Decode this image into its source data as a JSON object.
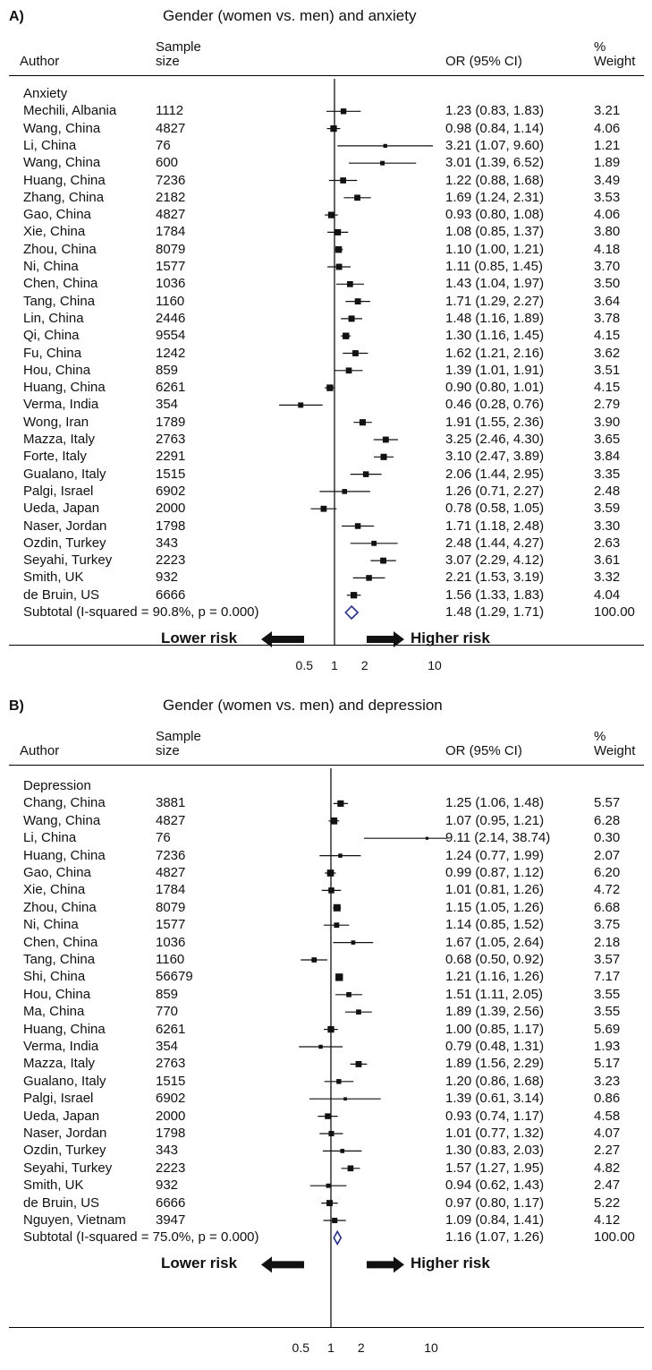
{
  "panels": [
    {
      "label": "A)",
      "title": "Gender (women vs. men) and anxiety",
      "headers": {
        "author": "Author",
        "sample_line1": "Sample",
        "sample_line2": "size",
        "or": "OR (95% CI)",
        "weight_line1": "%",
        "weight_line2": "Weight"
      },
      "group": "Anxiety",
      "subtotal_label": "Subtotal  (I-squared = 90.8%, p = 0.000)",
      "subtotal_text": "1.48 (1.29, 1.71)",
      "subtotal_weight": "100.00",
      "lower_risk": "Lower risk",
      "higher_risk": "Higher risk",
      "ticks": [
        "0.5",
        "1",
        "2",
        "10"
      ],
      "chart_data": {
        "type": "forest",
        "x_scale": "log",
        "reference_line": 1,
        "summary": {
          "or": 1.48,
          "lo": 1.29,
          "hi": 1.71
        },
        "studies": [
          {
            "author": "Mechili, Albania",
            "n": "1112",
            "or": 1.23,
            "lo": 0.83,
            "hi": 1.83,
            "text": "1.23 (0.83, 1.83)",
            "weight": "3.21"
          },
          {
            "author": "Wang, China",
            "n": "4827",
            "or": 0.98,
            "lo": 0.84,
            "hi": 1.14,
            "text": "0.98 (0.84, 1.14)",
            "weight": "4.06"
          },
          {
            "author": "Li, China",
            "n": "76",
            "or": 3.21,
            "lo": 1.07,
            "hi": 9.6,
            "text": "3.21 (1.07, 9.60)",
            "weight": "1.21"
          },
          {
            "author": "Wang, China",
            "n": "600",
            "or": 3.01,
            "lo": 1.39,
            "hi": 6.52,
            "text": "3.01 (1.39, 6.52)",
            "weight": "1.89"
          },
          {
            "author": "Huang, China",
            "n": "7236",
            "or": 1.22,
            "lo": 0.88,
            "hi": 1.68,
            "text": "1.22 (0.88, 1.68)",
            "weight": "3.49"
          },
          {
            "author": "Zhang, China",
            "n": "2182",
            "or": 1.69,
            "lo": 1.24,
            "hi": 2.31,
            "text": "1.69 (1.24, 2.31)",
            "weight": "3.53"
          },
          {
            "author": "Gao, China",
            "n": "4827",
            "or": 0.93,
            "lo": 0.8,
            "hi": 1.08,
            "text": "0.93 (0.80, 1.08)",
            "weight": "4.06"
          },
          {
            "author": "Xie, China",
            "n": "1784",
            "or": 1.08,
            "lo": 0.85,
            "hi": 1.37,
            "text": "1.08 (0.85, 1.37)",
            "weight": "3.80"
          },
          {
            "author": "Zhou, China",
            "n": "8079",
            "or": 1.1,
            "lo": 1.0,
            "hi": 1.21,
            "text": "1.10 (1.00, 1.21)",
            "weight": "4.18"
          },
          {
            "author": "Ni, China",
            "n": "1577",
            "or": 1.11,
            "lo": 0.85,
            "hi": 1.45,
            "text": "1.11 (0.85, 1.45)",
            "weight": "3.70"
          },
          {
            "author": "Chen, China",
            "n": "1036",
            "or": 1.43,
            "lo": 1.04,
            "hi": 1.97,
            "text": "1.43 (1.04, 1.97)",
            "weight": "3.50"
          },
          {
            "author": "Tang, China",
            "n": "1160",
            "or": 1.71,
            "lo": 1.29,
            "hi": 2.27,
            "text": "1.71 (1.29, 2.27)",
            "weight": "3.64"
          },
          {
            "author": "Lin, China",
            "n": "2446",
            "or": 1.48,
            "lo": 1.16,
            "hi": 1.89,
            "text": "1.48 (1.16, 1.89)",
            "weight": "3.78"
          },
          {
            "author": "Qi, China",
            "n": "9554",
            "or": 1.3,
            "lo": 1.16,
            "hi": 1.45,
            "text": "1.30 (1.16, 1.45)",
            "weight": "4.15"
          },
          {
            "author": "Fu, China",
            "n": "1242",
            "or": 1.62,
            "lo": 1.21,
            "hi": 2.16,
            "text": "1.62 (1.21, 2.16)",
            "weight": "3.62"
          },
          {
            "author": "Hou, China",
            "n": "859",
            "or": 1.39,
            "lo": 1.01,
            "hi": 1.91,
            "text": "1.39 (1.01, 1.91)",
            "weight": "3.51"
          },
          {
            "author": "Huang, China",
            "n": "6261",
            "or": 0.9,
            "lo": 0.8,
            "hi": 1.01,
            "text": "0.90 (0.80, 1.01)",
            "weight": "4.15"
          },
          {
            "author": "Verma, India",
            "n": "354",
            "or": 0.46,
            "lo": 0.28,
            "hi": 0.76,
            "text": "0.46 (0.28, 0.76)",
            "weight": "2.79"
          },
          {
            "author": "Wong, Iran",
            "n": "1789",
            "or": 1.91,
            "lo": 1.55,
            "hi": 2.36,
            "text": "1.91 (1.55, 2.36)",
            "weight": "3.90"
          },
          {
            "author": "Mazza, Italy",
            "n": "2763",
            "or": 3.25,
            "lo": 2.46,
            "hi": 4.3,
            "text": "3.25 (2.46, 4.30)",
            "weight": "3.65"
          },
          {
            "author": "Forte, Italy",
            "n": "2291",
            "or": 3.1,
            "lo": 2.47,
            "hi": 3.89,
            "text": "3.10 (2.47, 3.89)",
            "weight": "3.84"
          },
          {
            "author": "Gualano, Italy",
            "n": "1515",
            "or": 2.06,
            "lo": 1.44,
            "hi": 2.95,
            "text": "2.06 (1.44, 2.95)",
            "weight": "3.35"
          },
          {
            "author": "Palgi, Israel",
            "n": "6902",
            "or": 1.26,
            "lo": 0.71,
            "hi": 2.27,
            "text": "1.26 (0.71, 2.27)",
            "weight": "2.48"
          },
          {
            "author": "Ueda, Japan",
            "n": "2000",
            "or": 0.78,
            "lo": 0.58,
            "hi": 1.05,
            "text": "0.78 (0.58, 1.05)",
            "weight": "3.59"
          },
          {
            "author": "Naser, Jordan",
            "n": "1798",
            "or": 1.71,
            "lo": 1.18,
            "hi": 2.48,
            "text": "1.71 (1.18, 2.48)",
            "weight": "3.30"
          },
          {
            "author": "Ozdin, Turkey",
            "n": "343",
            "or": 2.48,
            "lo": 1.44,
            "hi": 4.27,
            "text": "2.48 (1.44, 4.27)",
            "weight": "2.63"
          },
          {
            "author": "Seyahi, Turkey",
            "n": "2223",
            "or": 3.07,
            "lo": 2.29,
            "hi": 4.12,
            "text": "3.07 (2.29, 4.12)",
            "weight": "3.61"
          },
          {
            "author": "Smith, UK",
            "n": "932",
            "or": 2.21,
            "lo": 1.53,
            "hi": 3.19,
            "text": "2.21 (1.53, 3.19)",
            "weight": "3.32"
          },
          {
            "author": "de Bruin, US",
            "n": "6666",
            "or": 1.56,
            "lo": 1.33,
            "hi": 1.83,
            "text": "1.56 (1.33, 1.83)",
            "weight": "4.04"
          }
        ]
      }
    },
    {
      "label": "B)",
      "title": "Gender (women vs. men) and depression",
      "headers": {
        "author": "Author",
        "sample_line1": "Sample",
        "sample_line2": "size",
        "or": "OR (95% CI)",
        "weight_line1": "%",
        "weight_line2": "Weight"
      },
      "group": "Depression",
      "subtotal_label": "Subtotal  (I-squared = 75.0%, p = 0.000)",
      "subtotal_text": "1.16 (1.07, 1.26)",
      "subtotal_weight": "100.00",
      "lower_risk": "Lower risk",
      "higher_risk": "Higher risk",
      "ticks": [
        "0.5",
        "1",
        "2",
        "10"
      ],
      "chart_data": {
        "type": "forest",
        "x_scale": "log",
        "reference_line": 1,
        "summary": {
          "or": 1.16,
          "lo": 1.07,
          "hi": 1.26
        },
        "studies": [
          {
            "author": "Chang, China",
            "n": "3881",
            "or": 1.25,
            "lo": 1.06,
            "hi": 1.48,
            "text": "1.25 (1.06, 1.48)",
            "weight": "5.57"
          },
          {
            "author": "Wang, China",
            "n": "4827",
            "or": 1.07,
            "lo": 0.95,
            "hi": 1.21,
            "text": "1.07 (0.95, 1.21)",
            "weight": "6.28"
          },
          {
            "author": "Li, China",
            "n": "76",
            "or": 9.11,
            "lo": 2.14,
            "hi": 38.74,
            "text": "9.11 (2.14, 38.74)",
            "weight": "0.30"
          },
          {
            "author": "Huang, China",
            "n": "7236",
            "or": 1.24,
            "lo": 0.77,
            "hi": 1.99,
            "text": "1.24 (0.77, 1.99)",
            "weight": "2.07"
          },
          {
            "author": "Gao, China",
            "n": "4827",
            "or": 0.99,
            "lo": 0.87,
            "hi": 1.12,
            "text": "0.99 (0.87, 1.12)",
            "weight": "6.20"
          },
          {
            "author": "Xie, China",
            "n": "1784",
            "or": 1.01,
            "lo": 0.81,
            "hi": 1.26,
            "text": "1.01 (0.81, 1.26)",
            "weight": "4.72"
          },
          {
            "author": "Zhou, China",
            "n": "8079",
            "or": 1.15,
            "lo": 1.05,
            "hi": 1.26,
            "text": "1.15 (1.05, 1.26)",
            "weight": "6.68"
          },
          {
            "author": "Ni, China",
            "n": "1577",
            "or": 1.14,
            "lo": 0.85,
            "hi": 1.52,
            "text": "1.14 (0.85, 1.52)",
            "weight": "3.75"
          },
          {
            "author": "Chen, China",
            "n": "1036",
            "or": 1.67,
            "lo": 1.05,
            "hi": 2.64,
            "text": "1.67 (1.05, 2.64)",
            "weight": "2.18"
          },
          {
            "author": "Tang, China",
            "n": "1160",
            "or": 0.68,
            "lo": 0.5,
            "hi": 0.92,
            "text": "0.68 (0.50, 0.92)",
            "weight": "3.57"
          },
          {
            "author": "Shi, China",
            "n": "56679",
            "or": 1.21,
            "lo": 1.16,
            "hi": 1.26,
            "text": "1.21 (1.16, 1.26)",
            "weight": "7.17"
          },
          {
            "author": "Hou, China",
            "n": "859",
            "or": 1.51,
            "lo": 1.11,
            "hi": 2.05,
            "text": "1.51 (1.11, 2.05)",
            "weight": "3.55"
          },
          {
            "author": "Ma, China",
            "n": "770",
            "or": 1.89,
            "lo": 1.39,
            "hi": 2.56,
            "text": "1.89 (1.39, 2.56)",
            "weight": "3.55"
          },
          {
            "author": "Huang, China",
            "n": "6261",
            "or": 1.0,
            "lo": 0.85,
            "hi": 1.17,
            "text": "1.00 (0.85, 1.17)",
            "weight": "5.69"
          },
          {
            "author": "Verma, India",
            "n": "354",
            "or": 0.79,
            "lo": 0.48,
            "hi": 1.31,
            "text": "0.79 (0.48, 1.31)",
            "weight": "1.93"
          },
          {
            "author": "Mazza, Italy",
            "n": "2763",
            "or": 1.89,
            "lo": 1.56,
            "hi": 2.29,
            "text": "1.89 (1.56, 2.29)",
            "weight": "5.17"
          },
          {
            "author": "Gualano, Italy",
            "n": "1515",
            "or": 1.2,
            "lo": 0.86,
            "hi": 1.68,
            "text": "1.20 (0.86, 1.68)",
            "weight": "3.23"
          },
          {
            "author": "Palgi, Israel",
            "n": "6902",
            "or": 1.39,
            "lo": 0.61,
            "hi": 3.14,
            "text": "1.39 (0.61, 3.14)",
            "weight": "0.86"
          },
          {
            "author": "Ueda, Japan",
            "n": "2000",
            "or": 0.93,
            "lo": 0.74,
            "hi": 1.17,
            "text": "0.93 (0.74, 1.17)",
            "weight": "4.58"
          },
          {
            "author": "Naser, Jordan",
            "n": "1798",
            "or": 1.01,
            "lo": 0.77,
            "hi": 1.32,
            "text": "1.01 (0.77, 1.32)",
            "weight": "4.07"
          },
          {
            "author": "Ozdin, Turkey",
            "n": "343",
            "or": 1.3,
            "lo": 0.83,
            "hi": 2.03,
            "text": "1.30 (0.83, 2.03)",
            "weight": "2.27"
          },
          {
            "author": "Seyahi, Turkey",
            "n": "2223",
            "or": 1.57,
            "lo": 1.27,
            "hi": 1.95,
            "text": "1.57 (1.27, 1.95)",
            "weight": "4.82"
          },
          {
            "author": "Smith, UK",
            "n": "932",
            "or": 0.94,
            "lo": 0.62,
            "hi": 1.43,
            "text": "0.94 (0.62, 1.43)",
            "weight": "2.47"
          },
          {
            "author": "de Bruin, US",
            "n": "6666",
            "or": 0.97,
            "lo": 0.8,
            "hi": 1.17,
            "text": "0.97 (0.80, 1.17)",
            "weight": "5.22"
          },
          {
            "author": "Nguyen, Vietnam",
            "n": "3947",
            "or": 1.09,
            "lo": 0.84,
            "hi": 1.41,
            "text": "1.09 (0.84, 1.41)",
            "weight": "4.12"
          }
        ]
      }
    }
  ],
  "colors": {
    "ink": "#111111",
    "diamond": "#1f2a9c",
    "background": "#ffffff"
  }
}
